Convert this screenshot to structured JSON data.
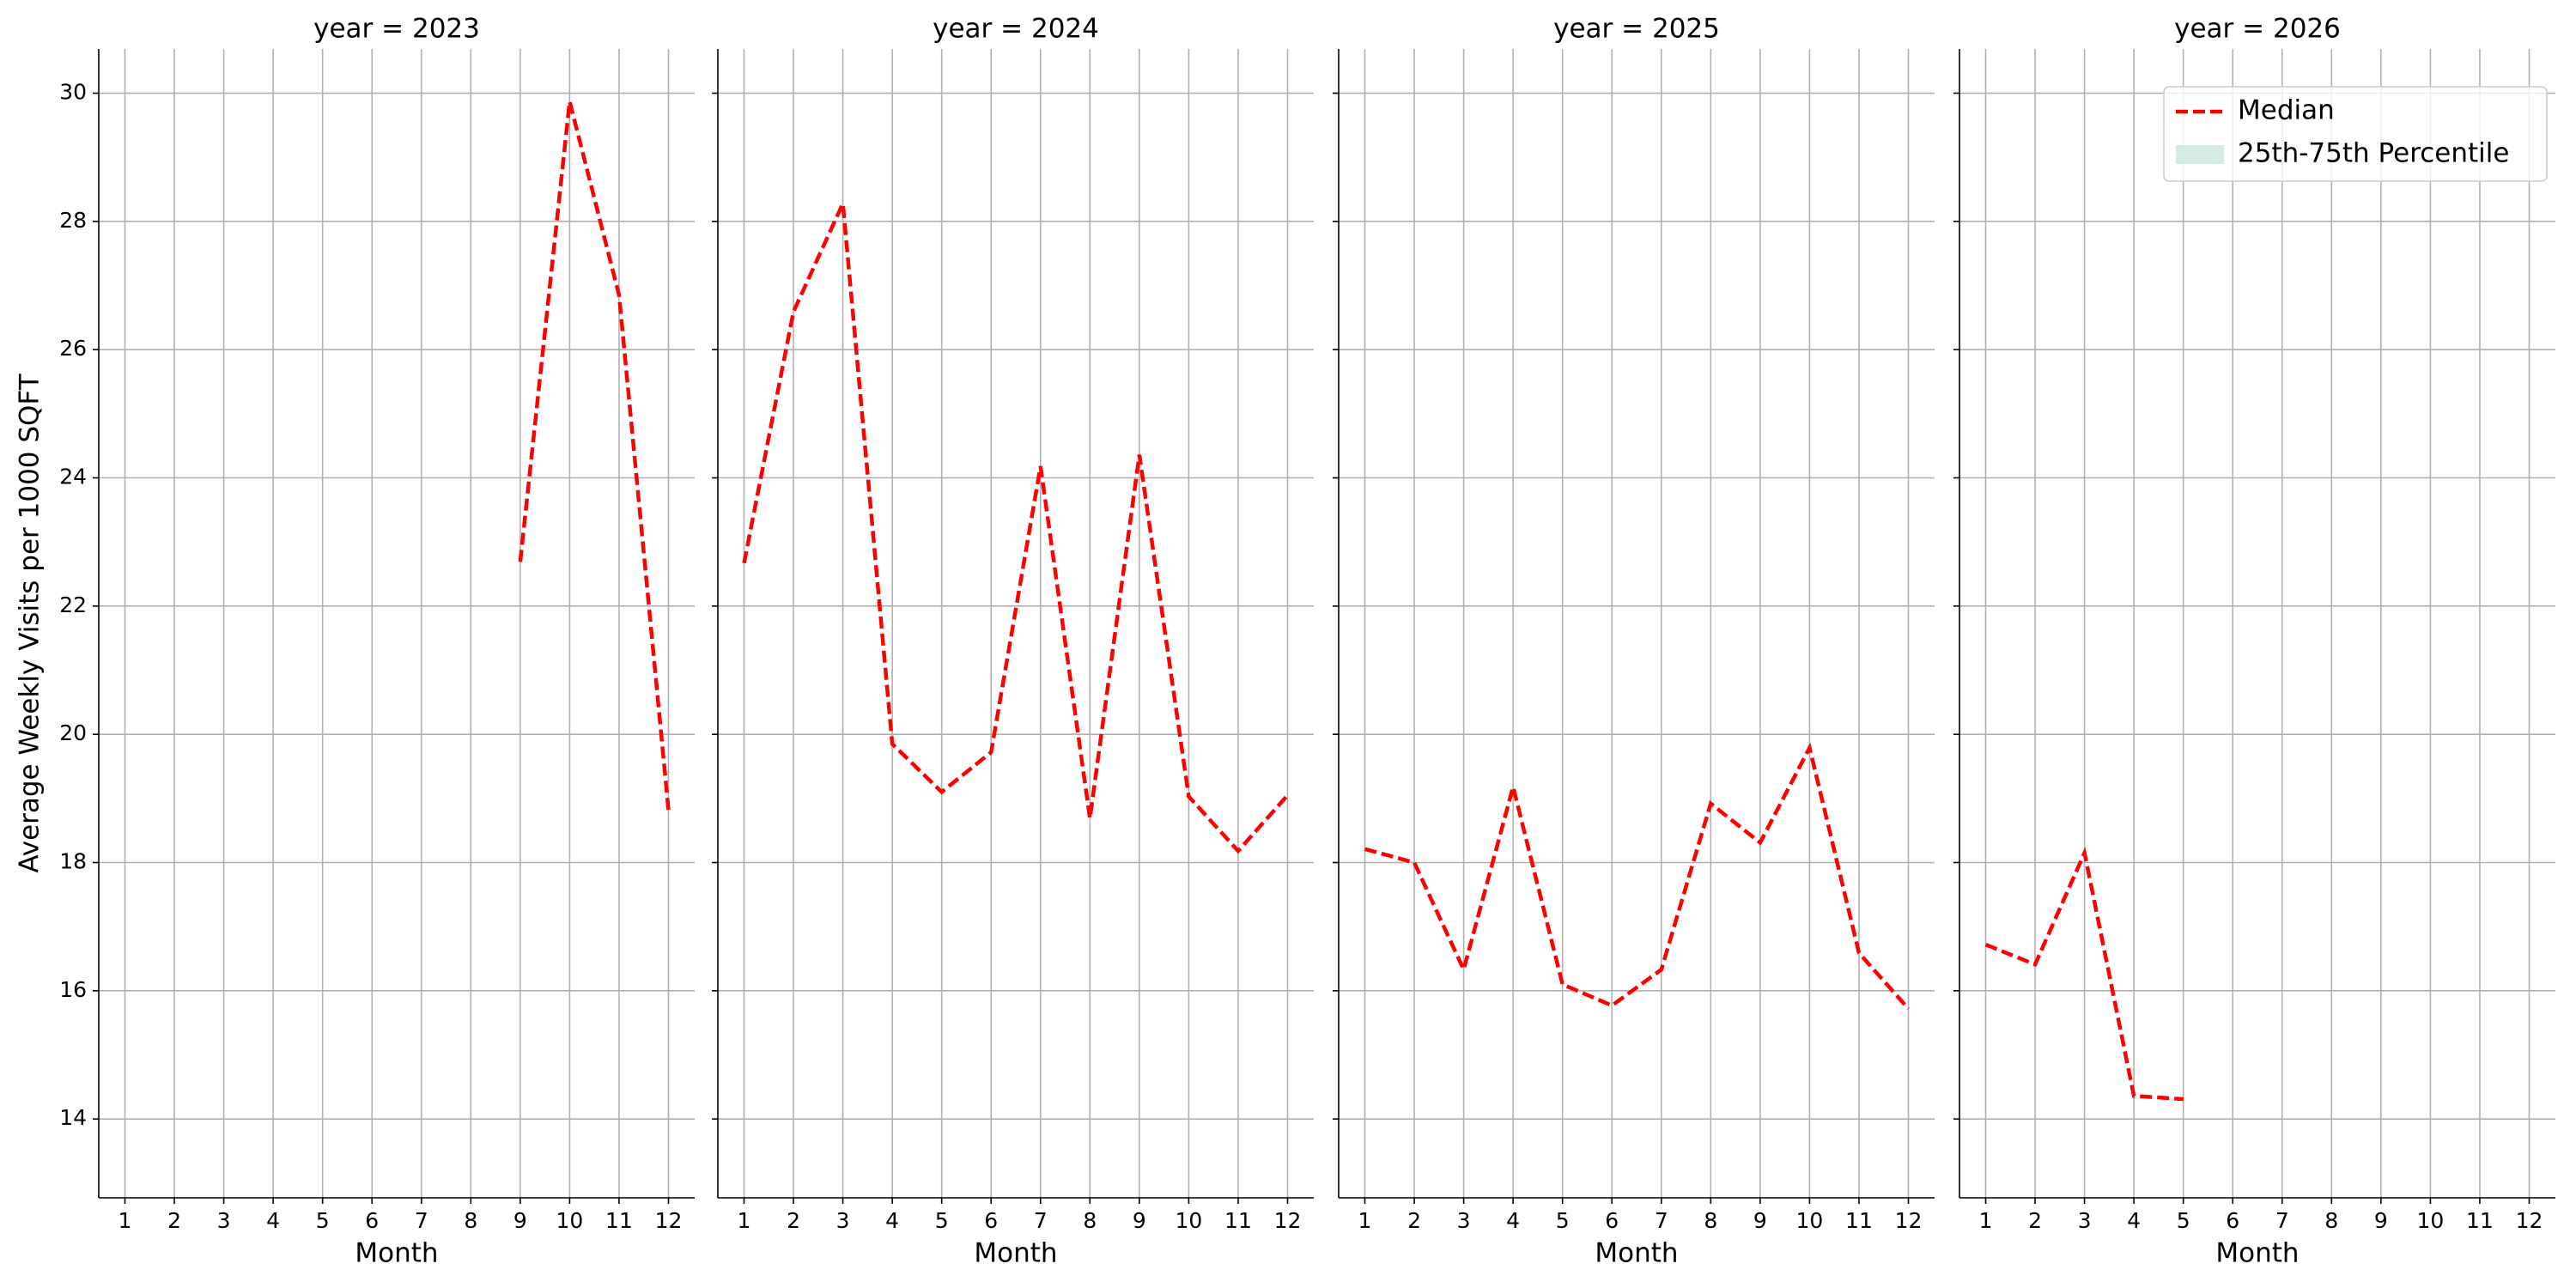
{
  "chart_data": [
    {
      "type": "line",
      "title": "year = 2023",
      "xlabel": "Month",
      "ylabel": "Average Weekly Visits per 1000 SQFT",
      "x": [
        1,
        2,
        3,
        4,
        5,
        6,
        7,
        8,
        9,
        10,
        11,
        12
      ],
      "xlim": [
        0.47,
        12.53
      ],
      "xticks": [
        1,
        2,
        3,
        4,
        5,
        6,
        7,
        8,
        9,
        10,
        11,
        12
      ],
      "ylim": [
        12.77,
        30.69
      ],
      "yticks": [
        14,
        16,
        18,
        20,
        22,
        24,
        26,
        28,
        30
      ],
      "grid": true,
      "series": [
        {
          "name": "Median",
          "color": "#ff0000",
          "values": [
            null,
            null,
            null,
            null,
            null,
            null,
            null,
            null,
            22.69,
            29.87,
            26.85,
            18.82
          ]
        }
      ]
    },
    {
      "type": "line",
      "title": "year = 2024",
      "xlabel": "Month",
      "x": [
        1,
        2,
        3,
        4,
        5,
        6,
        7,
        8,
        9,
        10,
        11,
        12
      ],
      "xlim": [
        0.47,
        12.53
      ],
      "xticks": [
        1,
        2,
        3,
        4,
        5,
        6,
        7,
        8,
        9,
        10,
        11,
        12
      ],
      "ylim": [
        12.77,
        30.69
      ],
      "yticks": [
        14,
        16,
        18,
        20,
        22,
        24,
        26,
        28,
        30
      ],
      "grid": true,
      "series": [
        {
          "name": "Median",
          "color": "#ff0000",
          "values": [
            22.67,
            26.59,
            28.28,
            19.85,
            19.1,
            19.72,
            24.18,
            18.69,
            24.36,
            19.03,
            18.18,
            19.05
          ]
        }
      ]
    },
    {
      "type": "line",
      "title": "year = 2025",
      "xlabel": "Month",
      "x": [
        1,
        2,
        3,
        4,
        5,
        6,
        7,
        8,
        9,
        10,
        11,
        12
      ],
      "xlim": [
        0.47,
        12.53
      ],
      "xticks": [
        1,
        2,
        3,
        4,
        5,
        6,
        7,
        8,
        9,
        10,
        11,
        12
      ],
      "ylim": [
        12.77,
        30.69
      ],
      "yticks": [
        14,
        16,
        18,
        20,
        22,
        24,
        26,
        28,
        30
      ],
      "grid": true,
      "series": [
        {
          "name": "Median",
          "color": "#ff0000",
          "values": [
            18.21,
            18.0,
            16.33,
            19.18,
            16.1,
            15.77,
            16.33,
            18.92,
            18.31,
            19.79,
            16.59,
            15.72
          ]
        }
      ]
    },
    {
      "type": "line",
      "title": "year = 2026",
      "xlabel": "Month",
      "x": [
        1,
        2,
        3,
        4,
        5,
        6,
        7,
        8,
        9,
        10,
        11,
        12
      ],
      "xlim": [
        0.47,
        12.53
      ],
      "xticks": [
        1,
        2,
        3,
        4,
        5,
        6,
        7,
        8,
        9,
        10,
        11,
        12
      ],
      "ylim": [
        12.77,
        30.69
      ],
      "yticks": [
        14,
        16,
        18,
        20,
        22,
        24,
        26,
        28,
        30
      ],
      "grid": true,
      "legend": "upper right",
      "series": [
        {
          "name": "Median",
          "color": "#ff0000",
          "values": [
            16.72,
            16.41,
            18.15,
            14.36,
            14.31,
            null,
            null,
            null,
            null,
            null,
            null,
            null
          ]
        },
        {
          "name": "25th-75th Percentile",
          "color": "#d4ece4",
          "values": [
            null,
            null,
            null,
            null,
            null,
            null,
            null,
            null,
            null,
            null,
            null,
            null
          ]
        }
      ]
    }
  ]
}
